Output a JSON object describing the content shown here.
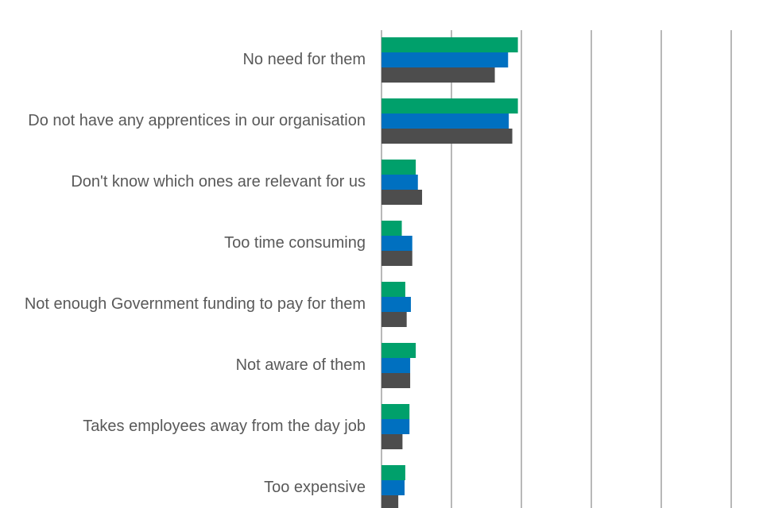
{
  "chart_data": {
    "type": "bar",
    "orientation": "horizontal",
    "title": "",
    "xlabel": "",
    "ylabel": "",
    "xlim": [
      0,
      50
    ],
    "grid": true,
    "legend": "none",
    "categories": [
      "No need for them",
      "Do not have any apprentices in our organisation",
      "Don't know which ones are relevant for us",
      "Too time consuming",
      "Not enough Government funding to pay for them",
      "Not aware of them",
      "Takes employees away from the day job",
      "Too expensive"
    ],
    "series": [
      {
        "values": [
          19.5,
          19.5,
          4.9,
          2.9,
          3.4,
          4.9,
          4.0,
          3.4
        ],
        "color": "#00a06b"
      },
      {
        "values": [
          18.1,
          18.2,
          5.2,
          4.4,
          4.2,
          4.1,
          4.0,
          3.3
        ],
        "color": "#0070c0"
      },
      {
        "values": [
          16.2,
          18.7,
          5.8,
          4.4,
          3.6,
          4.1,
          3.0,
          2.4
        ],
        "color": "#4d4d4d"
      }
    ]
  }
}
